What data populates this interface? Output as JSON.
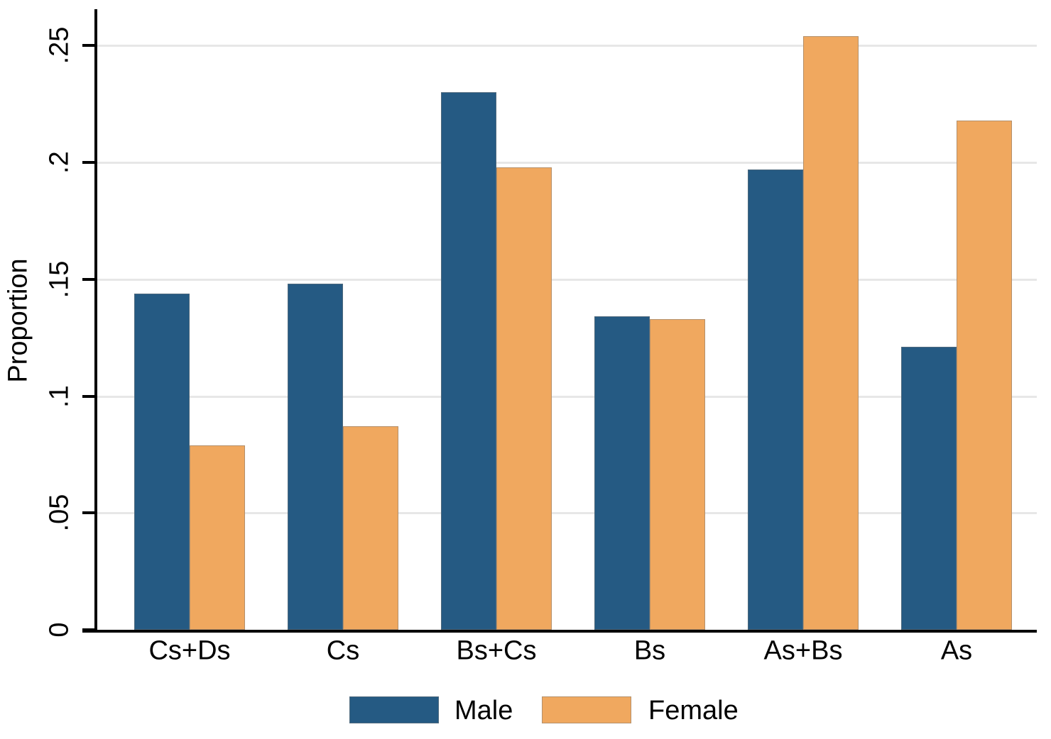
{
  "chart_data": {
    "type": "bar",
    "ylabel": "Proportion",
    "xlabel": "",
    "categories": [
      "Cs+Ds",
      "Cs",
      "Bs+Cs",
      "Bs",
      "As+Bs",
      "As"
    ],
    "series": [
      {
        "name": "Male",
        "color": "#255A83",
        "values": [
          0.144,
          0.148,
          0.23,
          0.134,
          0.197,
          0.121
        ]
      },
      {
        "name": "Female",
        "color": "#F0A85F",
        "values": [
          0.079,
          0.087,
          0.198,
          0.133,
          0.254,
          0.218
        ]
      }
    ],
    "yticks": [
      {
        "label": "0",
        "value": 0.0
      },
      {
        "label": ".05",
        "value": 0.05
      },
      {
        "label": ".1",
        "value": 0.1
      },
      {
        "label": ".15",
        "value": 0.15
      },
      {
        "label": ".2",
        "value": 0.2
      },
      {
        "label": ".25",
        "value": 0.25
      }
    ],
    "ylim": [
      0,
      0.265
    ],
    "grid": true,
    "legend_position": "bottom",
    "axis_color": "#000000",
    "gridline_color": "#e7e7e7"
  }
}
